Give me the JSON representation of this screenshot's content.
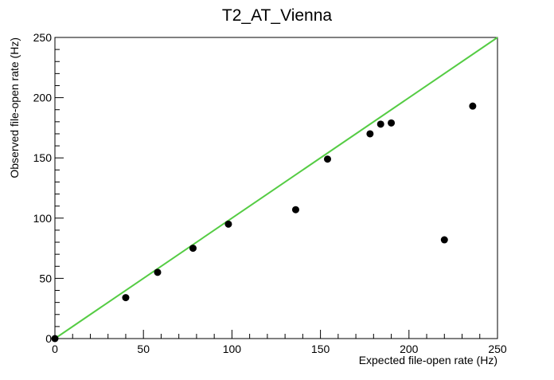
{
  "chart_data": {
    "type": "scatter",
    "title": "T2_AT_Vienna",
    "xlabel": "Expected file-open rate (Hz)",
    "ylabel": "Observed file-open rate (Hz)",
    "xlim": [
      0,
      250
    ],
    "ylim": [
      0,
      250
    ],
    "x_ticks": [
      0,
      50,
      100,
      150,
      200,
      250
    ],
    "y_ticks": [
      0,
      50,
      100,
      150,
      200,
      250
    ],
    "x_tick_labels": [
      "0",
      "50",
      "100",
      "150",
      "200",
      "250"
    ],
    "y_tick_labels": [
      "0",
      "50",
      "100",
      "150",
      "200",
      "250"
    ],
    "grid": false,
    "points": [
      {
        "x": 0,
        "y": 0
      },
      {
        "x": 40,
        "y": 34
      },
      {
        "x": 58,
        "y": 55
      },
      {
        "x": 78,
        "y": 75
      },
      {
        "x": 98,
        "y": 95
      },
      {
        "x": 136,
        "y": 107
      },
      {
        "x": 154,
        "y": 149
      },
      {
        "x": 178,
        "y": 170
      },
      {
        "x": 184,
        "y": 178
      },
      {
        "x": 190,
        "y": 179
      },
      {
        "x": 220,
        "y": 82
      },
      {
        "x": 236,
        "y": 193
      }
    ],
    "reference_line": {
      "x": [
        0,
        250
      ],
      "y": [
        0,
        250
      ]
    },
    "colors": {
      "points": "#000000",
      "reference_line": "#55cc44",
      "axes": "#000000"
    }
  }
}
